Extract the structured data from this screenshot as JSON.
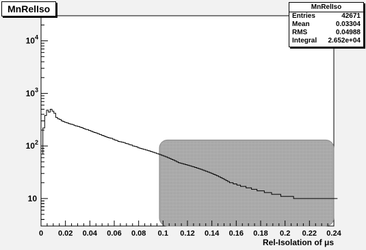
{
  "chart_data": {
    "type": "bar",
    "title": "MnRelIso",
    "xlabel": "Rel-Isolation of μs",
    "ylabel": "",
    "xlim": [
      0,
      0.24
    ],
    "ylim": [
      3,
      30000
    ],
    "log_y": true,
    "x_ticks": [
      "0",
      "0.02",
      "0.04",
      "0.06",
      "0.08",
      "0.1",
      "0.12",
      "0.14",
      "0.16",
      "0.18",
      "0.2",
      "0.22",
      "0.24"
    ],
    "y_ticks": [
      {
        "value": 10,
        "base": "10",
        "exp": ""
      },
      {
        "value": 100,
        "base": "10",
        "exp": "2"
      },
      {
        "value": 1000,
        "base": "10",
        "exp": "3"
      },
      {
        "value": 10000,
        "base": "10",
        "exp": "4"
      }
    ],
    "bin_width": 0.0015,
    "shaded_region": {
      "x_from": 0.097,
      "x_to": 0.24,
      "y_from": 3,
      "y_to": 130,
      "color": "#999999"
    },
    "grid": false,
    "legend": "top-right",
    "series": [
      {
        "values": [
          70,
          220,
          380,
          480,
          440,
          500,
          460,
          420,
          350,
          330,
          320,
          300,
          290,
          280,
          275,
          265,
          260,
          255,
          245,
          240,
          235,
          228,
          222,
          215,
          208,
          205,
          198,
          192,
          185,
          180,
          176,
          170,
          165,
          160,
          155,
          150,
          146,
          142,
          140,
          135,
          130,
          127,
          122,
          120,
          118,
          116,
          112,
          110,
          106,
          104,
          100,
          98,
          96,
          92,
          90,
          88,
          86,
          84,
          82,
          80,
          78,
          76,
          74,
          72,
          70,
          68,
          66,
          64,
          62,
          60,
          58,
          56,
          54,
          52,
          50,
          48,
          47,
          46,
          45,
          44,
          43,
          42,
          41,
          40,
          39,
          38,
          37,
          36,
          35,
          34,
          33,
          32,
          31,
          30,
          29,
          28,
          27,
          26,
          25,
          24,
          23,
          22,
          21,
          20,
          20,
          19,
          19,
          18,
          18,
          17,
          17,
          17,
          16,
          16,
          16,
          15,
          15,
          15,
          14,
          14,
          14,
          14,
          13,
          13,
          13,
          13,
          12,
          12,
          12,
          12,
          12,
          11,
          11,
          11,
          11,
          11,
          11,
          11,
          10,
          10,
          10,
          10,
          10,
          10,
          10,
          10,
          10,
          10,
          10,
          10,
          10,
          10,
          10,
          10,
          10,
          10,
          10,
          10,
          10,
          10,
          10,
          10
        ]
      }
    ]
  },
  "stats": {
    "title": "MnRelIso",
    "rows": [
      {
        "label": "Entries",
        "value": "42671"
      },
      {
        "label": "Mean",
        "value": "0.03304"
      },
      {
        "label": "RMS",
        "value": "0.04988"
      },
      {
        "label": "Integral",
        "value": "2.652e+04"
      }
    ]
  },
  "colors": {
    "line": "#000000",
    "frame": "#000000",
    "shade": "#999999",
    "background": "#f2f2f2"
  }
}
